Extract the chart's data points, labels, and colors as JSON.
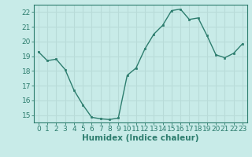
{
  "x": [
    0,
    1,
    2,
    3,
    4,
    5,
    6,
    7,
    8,
    9,
    10,
    11,
    12,
    13,
    14,
    15,
    16,
    17,
    18,
    19,
    20,
    21,
    22,
    23
  ],
  "y": [
    19.3,
    18.7,
    18.8,
    18.1,
    16.7,
    15.7,
    14.85,
    14.75,
    14.7,
    14.8,
    17.7,
    18.2,
    19.5,
    20.5,
    21.1,
    22.1,
    22.2,
    21.5,
    21.6,
    20.4,
    19.1,
    18.9,
    19.2,
    19.85
  ],
  "xlabel": "Humidex (Indice chaleur)",
  "ylim": [
    14.5,
    22.5
  ],
  "xlim": [
    -0.5,
    23.5
  ],
  "yticks": [
    15,
    16,
    17,
    18,
    19,
    20,
    21,
    22
  ],
  "xticks": [
    0,
    1,
    2,
    3,
    4,
    5,
    6,
    7,
    8,
    9,
    10,
    11,
    12,
    13,
    14,
    15,
    16,
    17,
    18,
    19,
    20,
    21,
    22,
    23
  ],
  "line_color": "#2d7d6e",
  "marker_color": "#2d7d6e",
  "bg_color": "#c8ebe8",
  "grid_color": "#b8dbd8",
  "axis_color": "#2d7d6e",
  "tick_fontsize": 6.5,
  "xlabel_fontsize": 7.5
}
